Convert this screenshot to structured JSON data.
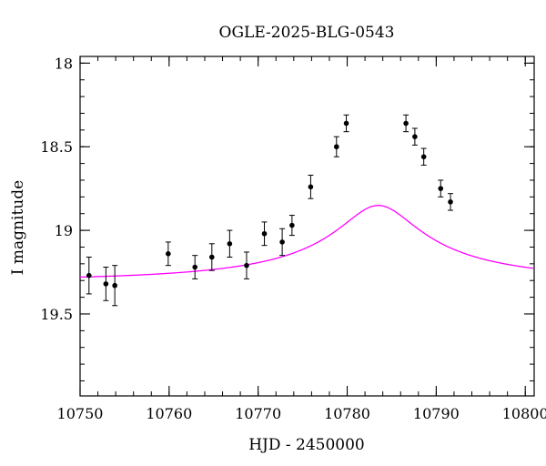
{
  "chart_data": {
    "type": "scatter",
    "title": "OGLE-2025-BLG-0543",
    "xlabel": "HJD - 2450000",
    "ylabel": "I magnitude",
    "xlim": [
      10750,
      10801
    ],
    "ylim": [
      19.99,
      17.96
    ],
    "y_inverted": true,
    "x_ticks": [
      10750,
      10760,
      10770,
      10780,
      10790,
      10800
    ],
    "y_ticks": [
      18,
      18.5,
      19,
      19.5
    ],
    "x_tick_labels": [
      "10750",
      "10760",
      "10770",
      "10780",
      "10790",
      "10800"
    ],
    "y_tick_labels": [
      "18",
      "18.5",
      "19",
      "19.5"
    ],
    "grid": false,
    "legend": "none",
    "series": [
      {
        "type": "scatter-errorbar",
        "color": "#000000",
        "points": [
          {
            "x": 10751.0,
            "y": 19.27,
            "err": 0.11
          },
          {
            "x": 10752.9,
            "y": 19.32,
            "err": 0.1
          },
          {
            "x": 10753.9,
            "y": 19.33,
            "err": 0.12
          },
          {
            "x": 10759.9,
            "y": 19.14,
            "err": 0.07
          },
          {
            "x": 10762.9,
            "y": 19.22,
            "err": 0.07
          },
          {
            "x": 10764.8,
            "y": 19.16,
            "err": 0.08
          },
          {
            "x": 10766.8,
            "y": 19.08,
            "err": 0.08
          },
          {
            "x": 10768.7,
            "y": 19.21,
            "err": 0.08
          },
          {
            "x": 10770.7,
            "y": 19.02,
            "err": 0.07
          },
          {
            "x": 10772.7,
            "y": 19.07,
            "err": 0.08
          },
          {
            "x": 10773.8,
            "y": 18.97,
            "err": 0.06
          },
          {
            "x": 10775.9,
            "y": 18.74,
            "err": 0.07
          },
          {
            "x": 10778.8,
            "y": 18.5,
            "err": 0.06
          },
          {
            "x": 10779.9,
            "y": 18.36,
            "err": 0.05
          },
          {
            "x": 10786.6,
            "y": 18.36,
            "err": 0.05
          },
          {
            "x": 10787.6,
            "y": 18.44,
            "err": 0.05
          },
          {
            "x": 10788.6,
            "y": 18.56,
            "err": 0.05
          },
          {
            "x": 10790.5,
            "y": 18.75,
            "err": 0.05
          },
          {
            "x": 10791.6,
            "y": 18.83,
            "err": 0.05
          }
        ]
      },
      {
        "type": "line",
        "color": "#ff00ff",
        "model": {
          "t0": 10783.5,
          "tE": 26,
          "u0": 0.165,
          "fs": 0.1,
          "I_base": 19.3
        }
      }
    ]
  }
}
